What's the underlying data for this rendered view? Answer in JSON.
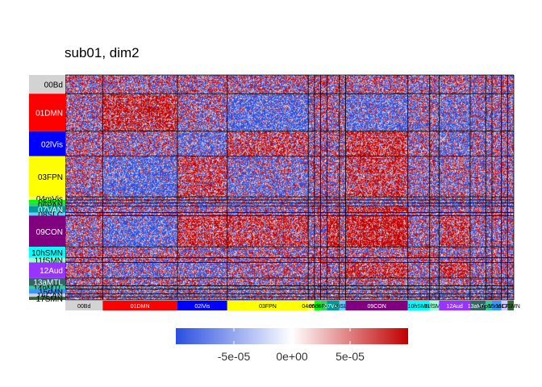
{
  "chart_data": {
    "type": "heatmap",
    "title": "sub01, dim2",
    "networks": [
      {
        "label": "00Bd",
        "size": 12,
        "color": "#d3d3d3",
        "text": "#000000"
      },
      {
        "label": "01DMN",
        "size": 24,
        "color": "#ff0000",
        "text": "#ffffff"
      },
      {
        "label": "02lVis",
        "size": 16,
        "color": "#0000ff",
        "text": "#ffffff"
      },
      {
        "label": "03FPN",
        "size": 26,
        "color": "#ffff00",
        "text": "#000000"
      },
      {
        "label": "04mVis",
        "size": 2,
        "color": "#ffff66",
        "text": "#000000"
      },
      {
        "label": "05dPN",
        "size": 2,
        "color": "#00ff00",
        "text": "#000000"
      },
      {
        "label": "06PAN",
        "size": 2,
        "color": "#33cc66",
        "text": "#000000"
      },
      {
        "label": "07VAN",
        "size": 4,
        "color": "#009999",
        "text": "#ffffff"
      },
      {
        "label": "08SLC",
        "size": 2,
        "color": "#66ccff",
        "text": "#000000"
      },
      {
        "label": "09CON",
        "size": 20,
        "color": "#800080",
        "text": "#ffffff"
      },
      {
        "label": "10hSMN",
        "size": 7,
        "color": "#00ffff",
        "text": "#000000"
      },
      {
        "label": "11fSMN",
        "size": 3,
        "color": "#99ffcc",
        "text": "#000000"
      },
      {
        "label": "12Aud",
        "size": 10,
        "color": "#9933ff",
        "text": "#ffffff"
      },
      {
        "label": "13aMTL",
        "size": 5,
        "color": "#336666",
        "text": "#ffffff"
      },
      {
        "label": "14pMTL",
        "size": 2,
        "color": "#33cc99",
        "text": "#000000"
      },
      {
        "label": "15rMN",
        "size": 3,
        "color": "#3399ff",
        "text": "#000000"
      },
      {
        "label": "16CAN",
        "size": 2,
        "color": "#ccccff",
        "text": "#000000"
      },
      {
        "label": "17SMN",
        "size": 2,
        "color": "#336633",
        "text": "#000000"
      }
    ],
    "legend": {
      "position": "bottom",
      "min": -0.0001,
      "max": 0.0001,
      "ticks": [
        {
          "value": -5e-05,
          "label": "-5e-05"
        },
        {
          "value": 0,
          "label": "0e+00"
        },
        {
          "value": 5e-05,
          "label": "5e-05"
        }
      ],
      "colors": {
        "low": "#2a4fe0",
        "mid": "#ffffff",
        "high": "#c00000"
      }
    },
    "pattern": {
      "blocks": [
        [
          1,
          "01DMN",
          "01DMN",
          0.8
        ],
        [
          2,
          "01DMN",
          "03FPN",
          -0.6
        ],
        [
          3,
          "01DMN",
          "09CON",
          -0.5
        ],
        [
          4,
          "02lVis",
          "02lVis",
          -0.5
        ],
        [
          5,
          "02lVis",
          "03FPN",
          0.4
        ],
        [
          6,
          "02lVis",
          "09CON",
          0.6
        ],
        [
          7,
          "03FPN",
          "03FPN",
          -0.3
        ],
        [
          8,
          "03FPN",
          "09CON",
          0.5
        ],
        [
          9,
          "09CON",
          "09CON",
          0.9
        ],
        [
          10,
          "09CON",
          "12Aud",
          0.6
        ],
        [
          11,
          "10hSMN",
          "10hSMN",
          0.5
        ],
        [
          12,
          "12Aud",
          "12Aud",
          0.6
        ],
        [
          13,
          "07VAN",
          "09CON",
          0.7
        ],
        [
          14,
          "02lVis",
          "12Aud",
          -0.4
        ],
        [
          15,
          "01DMN",
          "12Aud",
          -0.3
        ]
      ]
    }
  }
}
